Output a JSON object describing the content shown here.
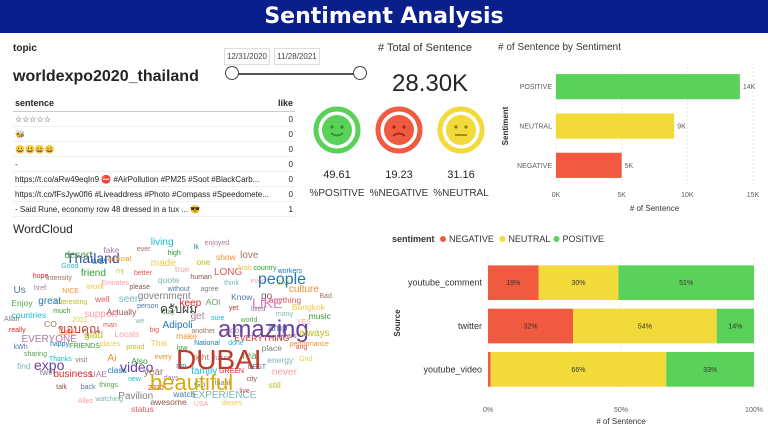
{
  "header": {
    "title": "Sentiment Analysis"
  },
  "filter": {
    "label": "topic",
    "value": "worldexpo2020_thailand",
    "date_start": "12/31/2020",
    "date_end": "11/28/2021"
  },
  "table": {
    "col_sentence": "sentence",
    "col_like": "like",
    "rows": [
      {
        "sentence": "☆☆☆☆☆",
        "like": "0"
      },
      {
        "sentence": "🐝",
        "like": "0"
      },
      {
        "sentence": "😀😀😀😀",
        "like": "0"
      },
      {
        "sentence": "-",
        "like": "0"
      },
      {
        "sentence": "https://t.co/aRw49eqIn9 ⛔ #AirPollution #PM25 #Soot #BlackCarb...",
        "like": "0"
      },
      {
        "sentence": "https://t.co/fFsJyw0fI6 #Liveaddress #Photo #Compass #Speedomete...",
        "like": "0"
      },
      {
        "sentence": "- Said Rune, economy row 48 dressed in a tux ... 😎",
        "like": "1"
      }
    ]
  },
  "total": {
    "label": "# Total of Sentence",
    "value": "28.30K"
  },
  "sentiments": [
    {
      "value": "49.61",
      "label": "%POSITIVE",
      "color": "#5ad25a"
    },
    {
      "value": "19.23",
      "label": "%NEGATIVE",
      "color": "#ef5a40"
    },
    {
      "value": "31.16",
      "label": "%NEUTRAL",
      "color": "#f3da3b"
    }
  ],
  "wordcloud": {
    "title": "WordCloud",
    "words": [
      "Adipoli",
      "big",
      "stay",
      "make",
      "we",
      "get",
      "Thai",
      "person",
      "another",
      "Locals",
      "keep",
      "low",
      "Actually",
      "sure",
      "proud",
      "government",
      "National",
      "man",
      "AOI",
      "every",
      "seen",
      "poor",
      "places",
      "Thailand",
      "without",
      "right",
      "support",
      "yet",
      "Also",
      "please",
      "done",
      "glad",
      "agree",
      "run",
      "well",
      "world",
      "Ai",
      "quote",
      "future",
      "video",
      "expo",
      "2021",
      "Know",
      "year",
      "Emirates",
      "EVERYTHING",
      "FRIENDS",
      "human",
      "family",
      "interesting",
      "lived",
      "class",
      "better",
      "real",
      "safe",
      "think",
      "days",
      "work",
      "amp",
      "visit",
      "true",
      "GREEN",
      "much",
      "go",
      "ครับผม",
      "new",
      "กรุ",
      "place",
      "happy",
      "LONG",
      "Go",
      "NICE",
      "many",
      "UAE",
      "made",
      "ขอบคุณ",
      "BEST",
      "CO",
      "even",
      "2020",
      "friend",
      "years",
      "Thanks",
      "one",
      "thank",
      "great",
      "beautiful",
      "anything",
      "things",
      "artificial",
      "energy",
      "EVERYONE",
      "Arab",
      "watch",
      "intensity",
      "YES",
      "business",
      "high",
      "city",
      "countries",
      "SAY",
      "Pavilion",
      "แชร์",
      "ang",
      "sharing",
      "LIKE",
      "people",
      "show",
      "EXPERIENCE",
      "href",
      "Bangkok",
      "back",
      "ever",
      "never",
      "really",
      "country",
      "amazing",
      "DUBAI",
      "awesome",
      "Good",
      "always",
      "twin",
      "Ik",
      "live",
      "Enjoy",
      "culture",
      "watching",
      "fake",
      "Grid",
      "kWh",
      "love",
      "USA",
      "hope",
      "music",
      "talk",
      "living",
      "still",
      "Allah",
      "workers",
      "status",
      "desert",
      "performance",
      "find",
      "enjoyed",
      "dieses",
      "Us",
      "Bad",
      "Allez"
    ]
  },
  "bar_chart": {
    "title": "# of Sentence by Sentiment",
    "chart_data": {
      "type": "bar",
      "orientation": "horizontal",
      "title": "# of Sentence by Sentiment",
      "categories": [
        "POSITIVE",
        "NEUTRAL",
        "NEGATIVE"
      ],
      "values": [
        14000,
        9000,
        5000
      ],
      "data_labels": [
        "14K",
        "9K",
        "5K"
      ],
      "colors": [
        "#5ad25a",
        "#f3da3b",
        "#ef5a40"
      ],
      "xlabel": "# of Sentence",
      "ylabel": "Sentiment",
      "xlim": [
        0,
        15000
      ],
      "xticks": [
        0,
        5000,
        10000,
        15000
      ],
      "xtick_labels": [
        "0K",
        "5K",
        "10K",
        "15K"
      ],
      "grid": true
    }
  },
  "stacked_chart": {
    "chart_data": {
      "type": "bar",
      "orientation": "horizontal",
      "stacked": "percent",
      "categories": [
        "youtube_comment",
        "twitter",
        "youtube_video"
      ],
      "series": [
        {
          "name": "NEGATIVE",
          "color": "#ef5a40",
          "values": [
            19,
            32,
            1
          ],
          "labels": [
            "19%",
            "32%",
            ""
          ]
        },
        {
          "name": "NEUTRAL",
          "color": "#f3da3b",
          "values": [
            30,
            54,
            66
          ],
          "labels": [
            "30%",
            "54%",
            "66%"
          ]
        },
        {
          "name": "POSITIVE",
          "color": "#5ad25a",
          "values": [
            51,
            14,
            33
          ],
          "labels": [
            "51%",
            "14%",
            "33%"
          ]
        }
      ],
      "legend_title": "sentiment",
      "legend_position": "top-left",
      "xlabel": "# of Sentence",
      "ylabel": "Source",
      "xlim": [
        0,
        100
      ],
      "xticks": [
        0,
        50,
        100
      ],
      "xtick_labels": [
        "0%",
        "50%",
        "100%"
      ],
      "grid": true
    }
  }
}
